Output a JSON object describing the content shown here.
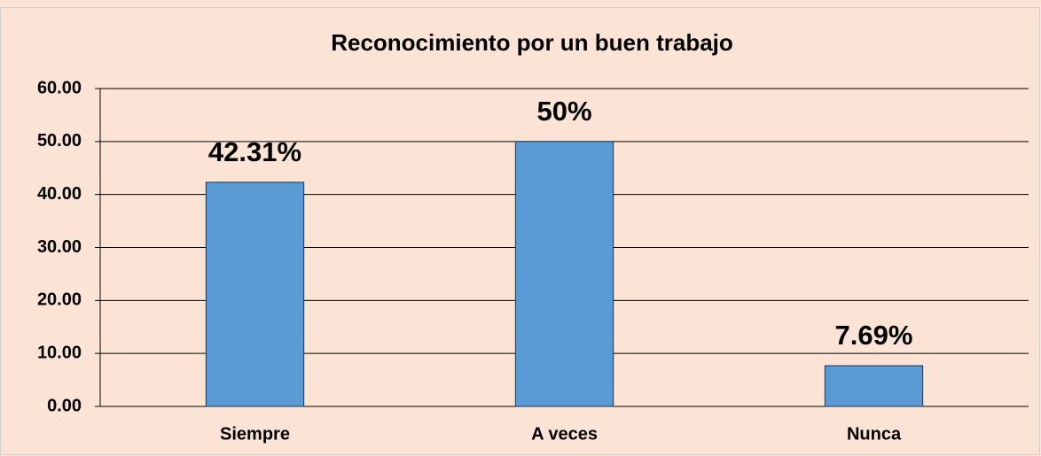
{
  "chart_data": {
    "type": "bar",
    "title": "Reconocimiento por un buen trabajo",
    "categories": [
      "Siempre",
      "A veces",
      "Nunca"
    ],
    "values": [
      42.31,
      50,
      7.69
    ],
    "value_labels": [
      "42.31%",
      "50%",
      "7.69%"
    ],
    "color": "#5b9bd5",
    "ylim": [
      0,
      60
    ],
    "yticks": [
      {
        "value": 0,
        "label": "0.00"
      },
      {
        "value": 10,
        "label": "10.00"
      },
      {
        "value": 20,
        "label": "20.00"
      },
      {
        "value": 30,
        "label": "30.00"
      },
      {
        "value": 40,
        "label": "40.00"
      },
      {
        "value": 50,
        "label": "50.00"
      },
      {
        "value": 60,
        "label": "60.00"
      }
    ],
    "grid": true
  }
}
